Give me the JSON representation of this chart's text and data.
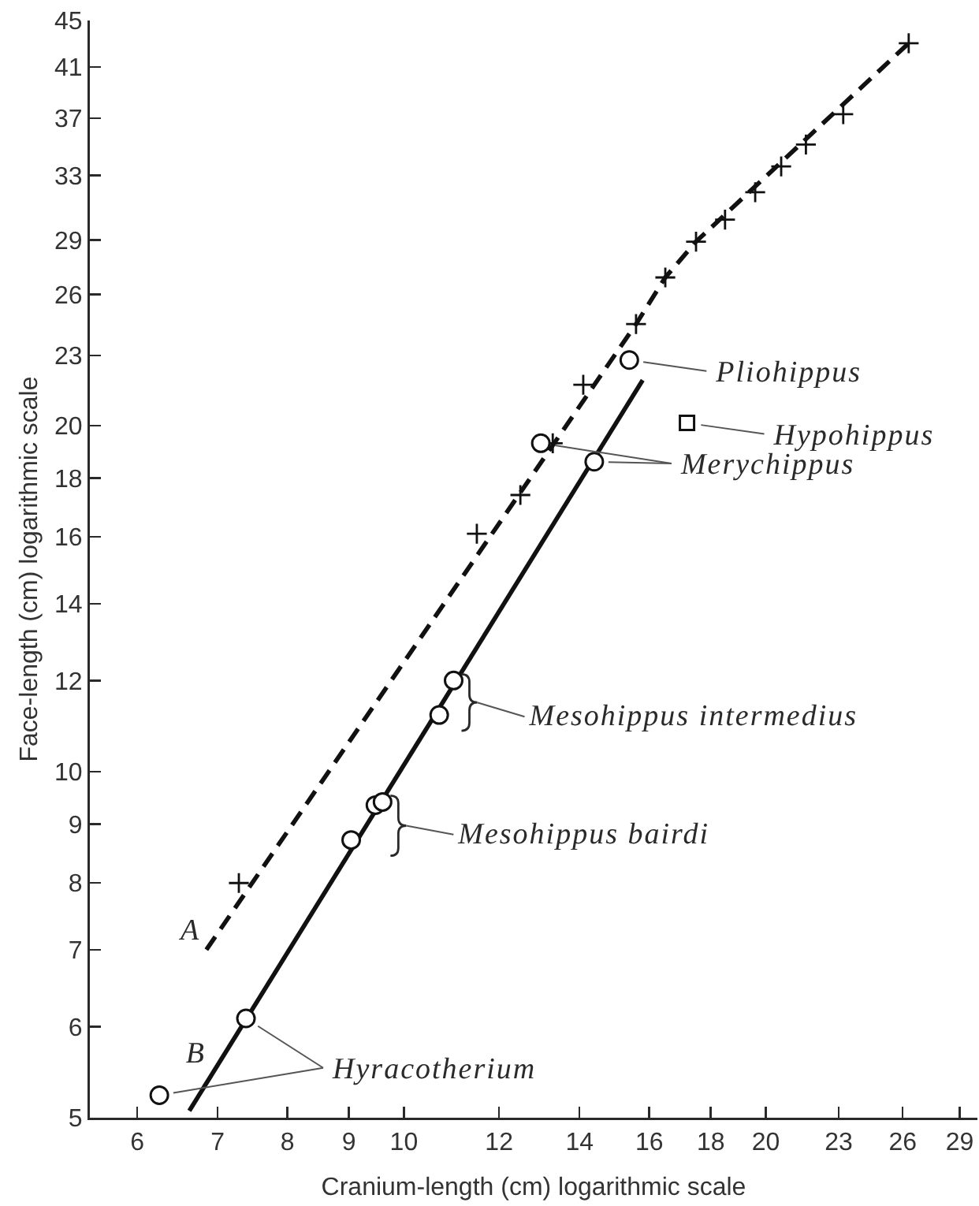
{
  "chart_data": {
    "type": "scatter",
    "xlabel": "Cranium-length (cm) logarithmic scale",
    "ylabel": "Face-length (cm) logarithmic scale",
    "log": "xy",
    "grid": false,
    "legend": false,
    "xlim": [
      5.48,
      30
    ],
    "ylim": [
      5,
      45
    ],
    "xticks": [
      6,
      7,
      8,
      9,
      10,
      12,
      14,
      16,
      18,
      20,
      23,
      26,
      29
    ],
    "yticks": [
      5,
      6,
      7,
      8,
      9,
      10,
      12,
      14,
      16,
      18,
      20,
      23,
      26,
      29,
      33,
      37,
      41,
      45
    ],
    "series": [
      {
        "name": "A",
        "type": "line",
        "line_style": "dashed",
        "marker": "none",
        "color": "#111111",
        "x": [
          6.85,
          15.6,
          16.5,
          17.5,
          26.3
        ],
        "values": [
          7.0,
          24.5,
          26.9,
          28.9,
          43.0
        ]
      },
      {
        "type": "scatter",
        "marker": "cross",
        "color": "#111111",
        "x": [
          7.29,
          11.5,
          12.5,
          13.3,
          14.1,
          15.6,
          16.5,
          17.5,
          18.5,
          19.6,
          20.6,
          21.6,
          23.2,
          26.3
        ],
        "values": [
          8.0,
          16.1,
          17.4,
          19.3,
          21.7,
          24.5,
          26.9,
          28.9,
          30.2,
          31.9,
          33.6,
          35.1,
          37.3,
          43.0
        ]
      },
      {
        "name": "B",
        "type": "line",
        "line_style": "solid",
        "marker": "none",
        "color": "#111111",
        "x": [
          6.63,
          15.8
        ],
        "values": [
          5.07,
          21.9
        ]
      },
      {
        "name": "Pliohippus",
        "type": "scatter",
        "marker": "circle",
        "color": "#111111",
        "x": [
          15.4
        ],
        "values": [
          22.8
        ]
      },
      {
        "name": "Hypohippus",
        "type": "scatter",
        "marker": "square",
        "color": "#111111",
        "x": [
          17.2
        ],
        "values": [
          20.1
        ]
      },
      {
        "name": "Merychippus",
        "type": "scatter",
        "marker": "circle",
        "color": "#111111",
        "x": [
          13.0,
          14.4
        ],
        "values": [
          19.3,
          18.6
        ]
      },
      {
        "name": "Mesohippus intermedius",
        "type": "scatter",
        "marker": "circle",
        "color": "#111111",
        "x": [
          10.7,
          11.0
        ],
        "values": [
          11.2,
          12.0
        ]
      },
      {
        "name": "Mesohippus bairdi",
        "type": "scatter",
        "marker": "circle",
        "color": "#111111",
        "x": [
          9.04,
          9.47,
          9.6
        ],
        "values": [
          8.72,
          9.35,
          9.41
        ]
      },
      {
        "name": "Hyracotherium",
        "type": "scatter",
        "marker": "circle",
        "color": "#111111",
        "x": [
          6.26,
          7.39
        ],
        "values": [
          5.23,
          6.1
        ]
      }
    ]
  }
}
